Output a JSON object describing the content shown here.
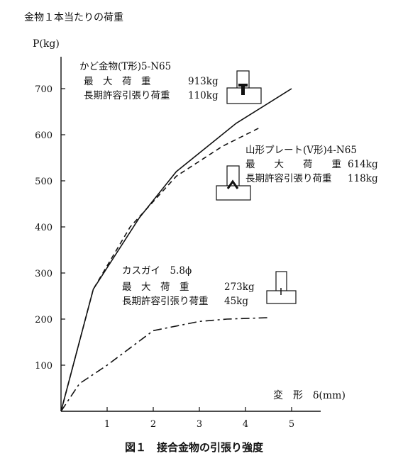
{
  "header": {
    "top_title": "金物１本当たりの荷重",
    "figure_caption": "図１　接合金物の引張り強度"
  },
  "chart_data": {
    "type": "line",
    "ylabel": "P(kg)",
    "xlabel": "変　形　δ(mm)",
    "xlim": [
      0,
      5.5
    ],
    "ylim": [
      0,
      740
    ],
    "xticks": [
      1,
      2,
      3,
      4,
      5
    ],
    "yticks": [
      100,
      200,
      300,
      400,
      500,
      600,
      700
    ],
    "grid": false,
    "series": [
      {
        "name": "かど金物(T形)5-N65",
        "style": "solid",
        "x": [
          0,
          0.7,
          1.7,
          2.5,
          3.8,
          5.0
        ],
        "y": [
          0,
          265,
          420,
          520,
          625,
          700
        ]
      },
      {
        "name": "山形プレート(V形)4-N65",
        "style": "dashed",
        "x": [
          0,
          0.7,
          1.5,
          2.5,
          3.5,
          4.3
        ],
        "y": [
          0,
          265,
          400,
          510,
          575,
          615
        ]
      },
      {
        "name": "カスガイ 5.8ϕ",
        "style": "dashdot",
        "x": [
          0,
          0.4,
          1.0,
          2.0,
          2.5,
          3.0,
          3.6,
          4.5
        ],
        "y": [
          0,
          60,
          100,
          175,
          185,
          195,
          200,
          203
        ]
      }
    ],
    "annotations": [
      {
        "title": "かど金物(T形)5-N65",
        "max_load_label": "最　大　荷　重",
        "max_load_value": "913kg",
        "allow_label": "長期許容引張り荷重",
        "allow_value": "110kg"
      },
      {
        "title": "山形プレート(V形)4-N65",
        "max_load_label": "最　　大　　荷　　重",
        "max_load_value": "614kg",
        "allow_label": "長期許容引張り荷重",
        "allow_value": "118kg"
      },
      {
        "title": "カスガイ　5.8ϕ",
        "max_load_label": "最　大　荷　重",
        "max_load_value": "273kg",
        "allow_label": "長期許容引張り荷重",
        "allow_value": "45kg"
      }
    ]
  }
}
